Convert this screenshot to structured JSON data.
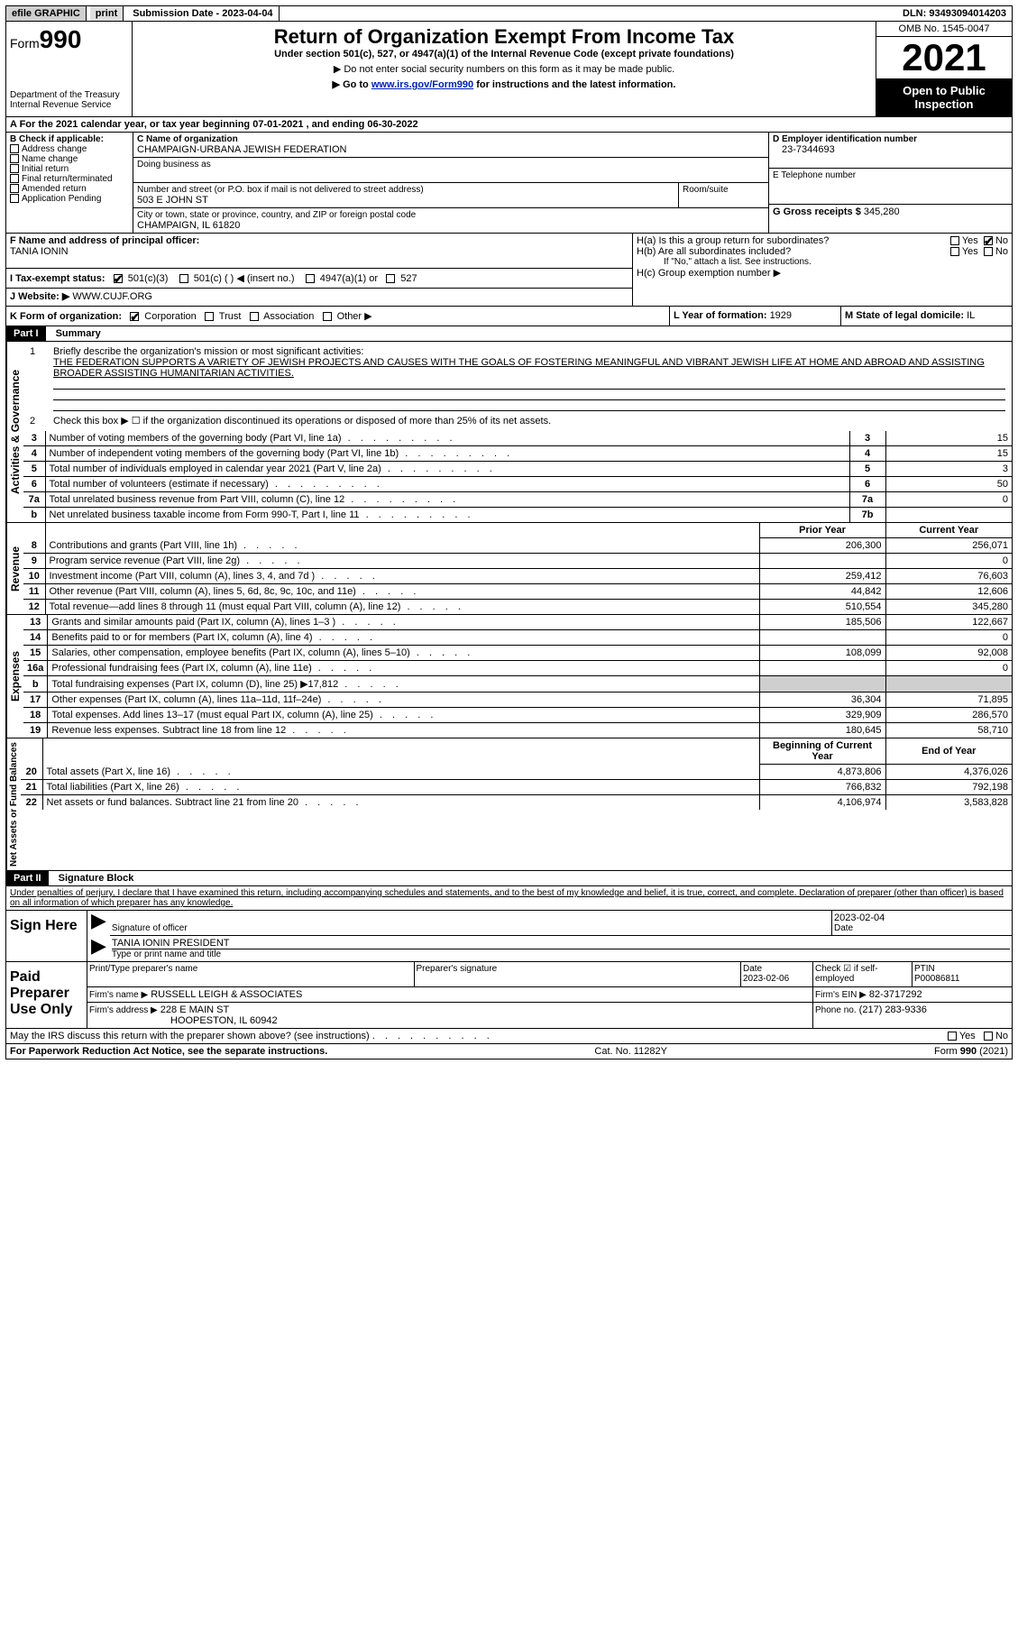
{
  "topbar": {
    "efile": "efile GRAPHIC",
    "print": "print",
    "subdate_label": "Submission Date - ",
    "subdate": "2023-04-04",
    "dln_label": "DLN: ",
    "dln": "93493094014203"
  },
  "header": {
    "form_word": "Form",
    "form_num": "990",
    "dept1": "Department of the Treasury",
    "dept2": "Internal Revenue Service",
    "title": "Return of Organization Exempt From Income Tax",
    "sub1": "Under section 501(c), 527, or 4947(a)(1) of the Internal Revenue Code (except private foundations)",
    "sub2": "▶ Do not enter social security numbers on this form as it may be made public.",
    "sub3_pre": "▶ Go to ",
    "sub3_link": "www.irs.gov/Form990",
    "sub3_post": " for instructions and the latest information.",
    "omb": "OMB No. 1545-0047",
    "year": "2021",
    "inspect": "Open to Public Inspection"
  },
  "line_a": {
    "text_pre": "A For the 2021 calendar year, or tax year beginning ",
    "begin": "07-01-2021",
    "mid": " , and ending ",
    "end": "06-30-2022"
  },
  "section_b": {
    "label": "B Check if applicable:",
    "addr_change": "Address change",
    "name_change": "Name change",
    "initial": "Initial return",
    "final": "Final return/terminated",
    "amended": "Amended return",
    "app_pending": "Application Pending"
  },
  "section_c": {
    "name_label": "C Name of organization",
    "name": "CHAMPAIGN-URBANA JEWISH FEDERATION",
    "dba_label": "Doing business as",
    "street_label": "Number and street (or P.O. box if mail is not delivered to street address)",
    "room_label": "Room/suite",
    "street": "503 E JOHN ST",
    "city_label": "City or town, state or province, country, and ZIP or foreign postal code",
    "city": "CHAMPAIGN, IL  61820"
  },
  "section_d": {
    "ein_label": "D Employer identification number",
    "ein": "23-7344693",
    "phone_label": "E Telephone number",
    "gross_label": "G Gross receipts $",
    "gross": "345,280"
  },
  "section_f": {
    "label": "F  Name and address of principal officer:",
    "name": "TANIA IONIN"
  },
  "section_h": {
    "ha": "H(a)  Is this a group return for subordinates?",
    "hb": "H(b)  Are all subordinates included?",
    "hb_note": "If \"No,\" attach a list. See instructions.",
    "hc": "H(c)  Group exemption number ▶",
    "yes": "Yes",
    "no": "No"
  },
  "line_i": {
    "label": "I   Tax-exempt status:",
    "o1": "501(c)(3)",
    "o2": "501(c) (  ) ◀ (insert no.)",
    "o3": "4947(a)(1) or",
    "o4": "527"
  },
  "line_j": {
    "label": "J   Website: ▶",
    "value": "WWW.CUJF.ORG"
  },
  "line_k": {
    "label": "K Form of organization:",
    "corp": "Corporation",
    "trust": "Trust",
    "assoc": "Association",
    "other": "Other ▶"
  },
  "line_l": {
    "label": "L Year of formation: ",
    "value": "1929"
  },
  "line_m": {
    "label": "M State of legal domicile: ",
    "value": "IL"
  },
  "part1": {
    "bar": "Part I",
    "title": "Summary",
    "l1a": "Briefly describe the organization's mission or most significant activities:",
    "l1b": "THE FEDERATION SUPPORTS A VARIETY OF JEWISH PROJECTS AND CAUSES WITH THE GOALS OF FOSTERING MEANINGFUL AND VIBRANT JEWISH LIFE AT HOME AND ABROAD AND ASSISTING BROADER ASSISTING HUMANITARIAN ACTIVITIES.",
    "l2": "Check this box ▶ ☐  if the organization discontinued its operations or disposed of more than 25% of its net assets.",
    "side_ag": "Activities & Governance",
    "side_rev": "Revenue",
    "side_exp": "Expenses",
    "side_net": "Net Assets or Fund Balances",
    "rows_ag": [
      {
        "n": "3",
        "desc": "Number of voting members of the governing body (Part VI, line 1a)",
        "box": "3",
        "val": "15"
      },
      {
        "n": "4",
        "desc": "Number of independent voting members of the governing body (Part VI, line 1b)",
        "box": "4",
        "val": "15"
      },
      {
        "n": "5",
        "desc": "Total number of individuals employed in calendar year 2021 (Part V, line 2a)",
        "box": "5",
        "val": "3"
      },
      {
        "n": "6",
        "desc": "Total number of volunteers (estimate if necessary)",
        "box": "6",
        "val": "50"
      },
      {
        "n": "7a",
        "desc": "Total unrelated business revenue from Part VIII, column (C), line 12",
        "box": "7a",
        "val": "0"
      },
      {
        "n": "b",
        "desc": "Net unrelated business taxable income from Form 990-T, Part I, line 11",
        "box": "7b",
        "val": ""
      }
    ],
    "col_prior": "Prior Year",
    "col_current": "Current Year",
    "rows_rev": [
      {
        "n": "8",
        "desc": "Contributions and grants (Part VIII, line 1h)",
        "p": "206,300",
        "c": "256,071"
      },
      {
        "n": "9",
        "desc": "Program service revenue (Part VIII, line 2g)",
        "p": "",
        "c": "0"
      },
      {
        "n": "10",
        "desc": "Investment income (Part VIII, column (A), lines 3, 4, and 7d )",
        "p": "259,412",
        "c": "76,603"
      },
      {
        "n": "11",
        "desc": "Other revenue (Part VIII, column (A), lines 5, 6d, 8c, 9c, 10c, and 11e)",
        "p": "44,842",
        "c": "12,606"
      },
      {
        "n": "12",
        "desc": "Total revenue—add lines 8 through 11 (must equal Part VIII, column (A), line 12)",
        "p": "510,554",
        "c": "345,280"
      }
    ],
    "rows_exp": [
      {
        "n": "13",
        "desc": "Grants and similar amounts paid (Part IX, column (A), lines 1–3 )",
        "p": "185,506",
        "c": "122,667"
      },
      {
        "n": "14",
        "desc": "Benefits paid to or for members (Part IX, column (A), line 4)",
        "p": "",
        "c": "0"
      },
      {
        "n": "15",
        "desc": "Salaries, other compensation, employee benefits (Part IX, column (A), lines 5–10)",
        "p": "108,099",
        "c": "92,008"
      },
      {
        "n": "16a",
        "desc": "Professional fundraising fees (Part IX, column (A), line 11e)",
        "p": "",
        "c": "0"
      },
      {
        "n": "b",
        "desc": "Total fundraising expenses (Part IX, column (D), line 25) ▶17,812",
        "p": "GREY",
        "c": "GREY"
      },
      {
        "n": "17",
        "desc": "Other expenses (Part IX, column (A), lines 11a–11d, 11f–24e)",
        "p": "36,304",
        "c": "71,895"
      },
      {
        "n": "18",
        "desc": "Total expenses. Add lines 13–17 (must equal Part IX, column (A), line 25)",
        "p": "329,909",
        "c": "286,570"
      },
      {
        "n": "19",
        "desc": "Revenue less expenses. Subtract line 18 from line 12",
        "p": "180,645",
        "c": "58,710"
      }
    ],
    "col_begin": "Beginning of Current Year",
    "col_end": "End of Year",
    "rows_net": [
      {
        "n": "20",
        "desc": "Total assets (Part X, line 16)",
        "p": "4,873,806",
        "c": "4,376,026"
      },
      {
        "n": "21",
        "desc": "Total liabilities (Part X, line 26)",
        "p": "766,832",
        "c": "792,198"
      },
      {
        "n": "22",
        "desc": "Net assets or fund balances. Subtract line 21 from line 20",
        "p": "4,106,974",
        "c": "3,583,828"
      }
    ]
  },
  "part2": {
    "bar": "Part II",
    "title": "Signature Block",
    "declaration": "Under penalties of perjury, I declare that I have examined this return, including accompanying schedules and statements, and to the best of my knowledge and belief, it is true, correct, and complete. Declaration of preparer (other than officer) is based on all information of which preparer has any knowledge.",
    "sign_here": "Sign Here",
    "sig_officer": "Signature of officer",
    "sig_date": "2023-02-04",
    "date_label": "Date",
    "officer_name": "TANIA IONIN  PRESIDENT",
    "type_name": "Type or print name and title",
    "paid": "Paid Preparer Use Only",
    "prep_name_label": "Print/Type preparer's name",
    "prep_sig_label": "Preparer's signature",
    "prep_date_label": "Date",
    "prep_date": "2023-02-06",
    "check_if": "Check ☑ if self-employed",
    "ptin_label": "PTIN",
    "ptin": "P00086811",
    "firm_name_label": "Firm's name    ▶",
    "firm_name": "RUSSELL LEIGH & ASSOCIATES",
    "firm_ein_label": "Firm's EIN ▶",
    "firm_ein": "82-3717292",
    "firm_addr_label": "Firm's address ▶",
    "firm_addr1": "228 E MAIN ST",
    "firm_addr2": "HOOPESTON, IL  60942",
    "phone_label": "Phone no.",
    "phone": "(217) 283-9336",
    "may_discuss": "May the IRS discuss this return with the preparer shown above? (see instructions)"
  },
  "footer": {
    "left": "For Paperwork Reduction Act Notice, see the separate instructions.",
    "center": "Cat. No. 11282Y",
    "right": "Form 990 (2021)"
  }
}
